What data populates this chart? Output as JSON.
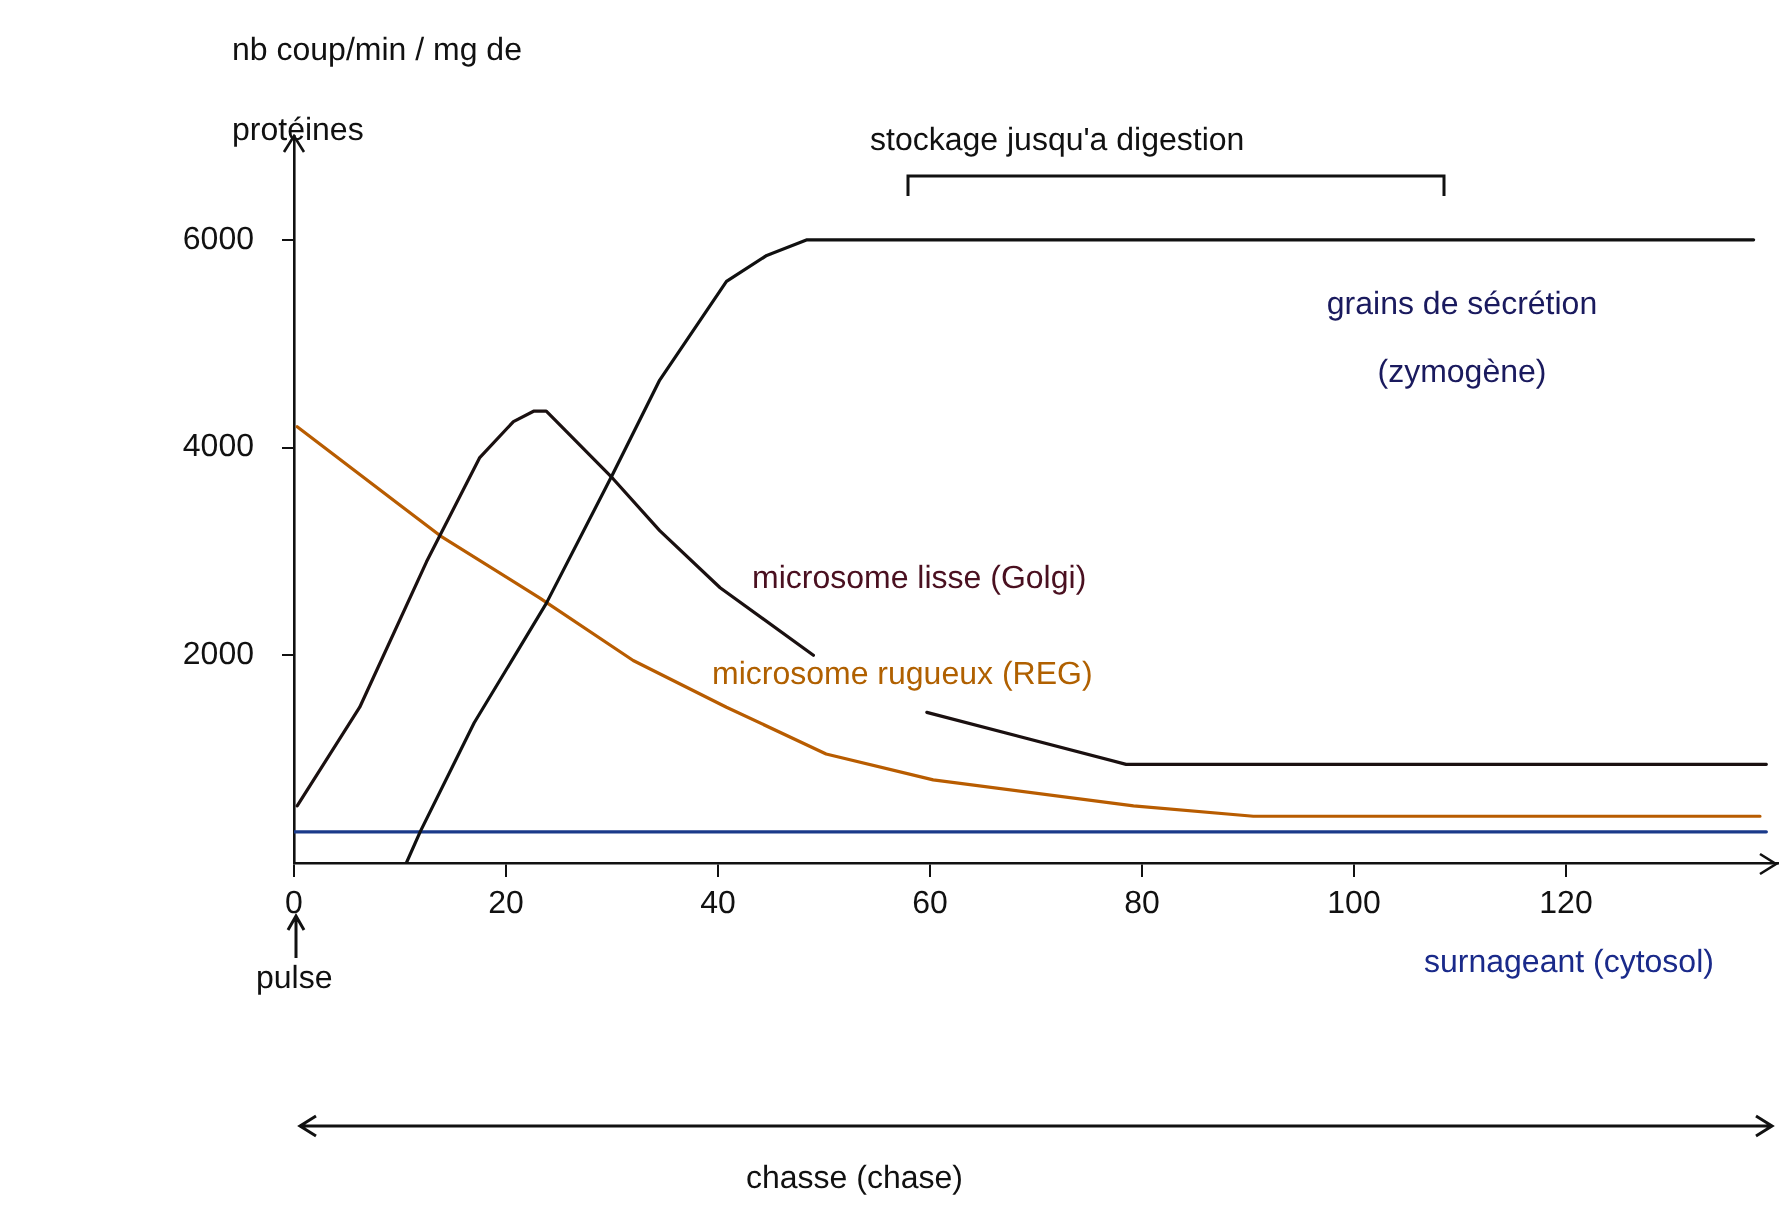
{
  "chart_data": {
    "type": "line",
    "ylabel": "nb coup/min / mg de protéines",
    "xlim": [
      0,
      140
    ],
    "ylim": [
      0,
      7000
    ],
    "xticks": [
      0,
      20,
      40,
      60,
      80,
      100,
      120
    ],
    "yticks": [
      2000,
      4000,
      6000
    ],
    "grid": false,
    "legend": false,
    "marker": "none",
    "line_style": "solid",
    "annotations": [
      "stockage jusqu'a digestion",
      "pulse",
      "chasse (chase)"
    ],
    "series": [
      {
        "name": "grains de sécrétion (zymogène)",
        "color": "#101010",
        "x": [
          10.6,
          11.9,
          17,
          23.8,
          30.1,
          34.5,
          40.8,
          44.6,
          48.4,
          137.7
        ],
        "values": [
          0,
          300,
          1350,
          2500,
          3750,
          4650,
          5600,
          5850,
          6000,
          6000
        ]
      },
      {
        "name": "microsome lisse (Golgi)",
        "color": "#1a1010",
        "x": [
          0.3,
          6.2,
          12.5,
          17.5,
          20.7,
          22.6,
          23.8,
          30.1,
          34.5,
          40.2,
          49,
          54,
          59.7,
          78.5,
          138.9
        ],
        "values": [
          550,
          1500,
          2900,
          3900,
          4250,
          4350,
          4350,
          3700,
          3200,
          2650,
          2000,
          null,
          1450,
          950,
          950
        ]
      },
      {
        "name": "microsome rugueux (REG)",
        "color": "#b85c00",
        "x": [
          0.3,
          13.8,
          23.2,
          32,
          40.8,
          50.2,
          60.3,
          79.2,
          90.5,
          138.3
        ],
        "values": [
          4200,
          3150,
          2550,
          1950,
          1500,
          1050,
          800,
          550,
          450,
          450
        ]
      },
      {
        "name": "surnageant (cytosol)",
        "color": "#1a3a8a",
        "x": [
          0,
          138.9
        ],
        "values": [
          300,
          300
        ]
      }
    ]
  }
}
